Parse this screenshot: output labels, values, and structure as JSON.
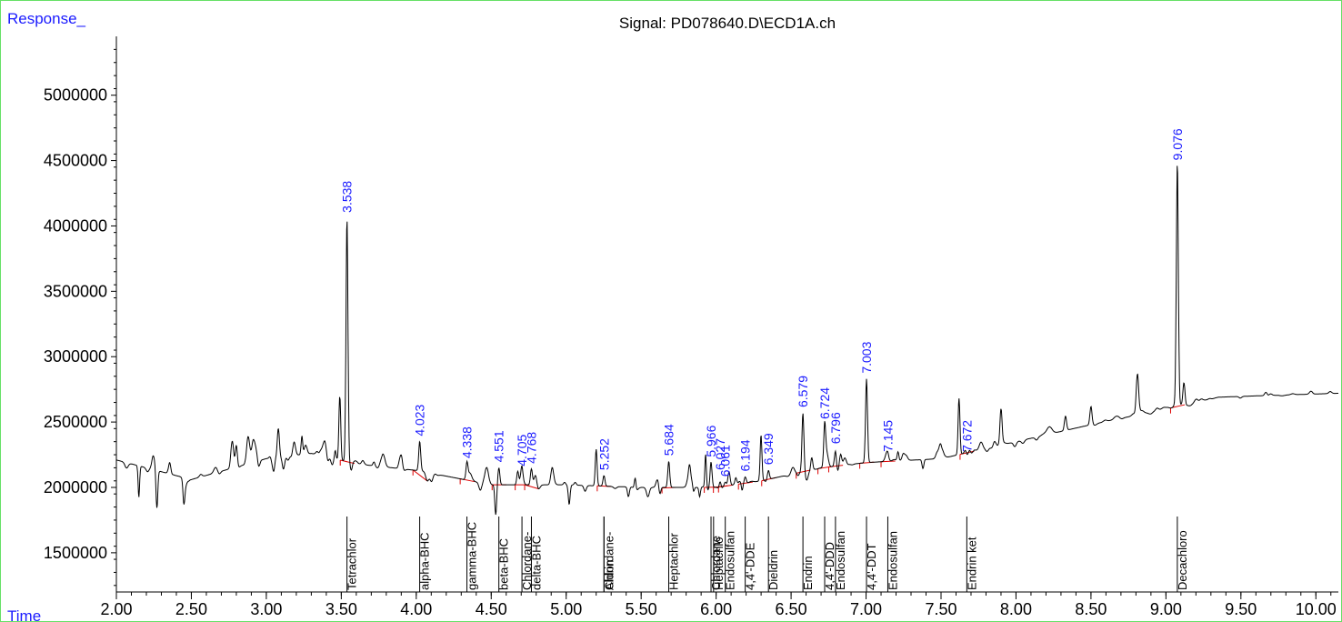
{
  "chart_data": {
    "type": "line",
    "title": "Signal: PD078640.D\\ECD1A.ch",
    "ylabel": "Response_",
    "xlabel": "Time",
    "xlim": [
      2.0,
      10.15
    ],
    "ylim": [
      1200000,
      5450000
    ],
    "x_ticks": [
      "2.00",
      "2.50",
      "3.00",
      "3.50",
      "4.00",
      "4.50",
      "5.00",
      "5.50",
      "6.00",
      "6.50",
      "7.00",
      "7.50",
      "8.00",
      "8.50",
      "9.00",
      "9.50",
      "10.00"
    ],
    "y_ticks": [
      "1500000",
      "2000000",
      "2500000",
      "3000000",
      "3500000",
      "4000000",
      "4500000",
      "5000000"
    ],
    "colors": {
      "trace": "#000000",
      "baseline": "#dd0000",
      "labels": "#1a1aff",
      "frame": "#66e066"
    },
    "peaks": [
      {
        "rt": "3.538",
        "x": 3.538,
        "y": 4060000
      },
      {
        "rt": "4.023",
        "x": 4.023,
        "y": 2350000
      },
      {
        "rt": "4.338",
        "x": 4.338,
        "y": 2180000
      },
      {
        "rt": "4.551",
        "x": 4.551,
        "y": 2150000
      },
      {
        "rt": "4.705",
        "x": 4.705,
        "y": 2120000
      },
      {
        "rt": "4.768",
        "x": 4.768,
        "y": 2140000
      },
      {
        "rt": "5.252",
        "x": 5.252,
        "y": 2090000
      },
      {
        "rt": "5.684",
        "x": 5.684,
        "y": 2200000
      },
      {
        "rt": "5.966",
        "x": 5.966,
        "y": 2190000
      },
      {
        "rt": "6.027",
        "x": 6.027,
        "y": 2090000
      },
      {
        "rt": "6.061",
        "x": 6.061,
        "y": 2040000
      },
      {
        "rt": "6.194",
        "x": 6.194,
        "y": 2080000
      },
      {
        "rt": "6.349",
        "x": 6.349,
        "y": 2130000
      },
      {
        "rt": "6.579",
        "x": 6.579,
        "y": 2570000
      },
      {
        "rt": "6.724",
        "x": 6.724,
        "y": 2480000
      },
      {
        "rt": "6.796",
        "x": 6.796,
        "y": 2290000
      },
      {
        "rt": "7.003",
        "x": 7.003,
        "y": 2830000
      },
      {
        "rt": "7.145",
        "x": 7.145,
        "y": 2230000
      },
      {
        "rt": "7.672",
        "x": 7.672,
        "y": 2230000
      },
      {
        "rt": "9.076",
        "x": 9.076,
        "y": 4460000
      }
    ],
    "compounds": [
      {
        "name": "Tetrachlor",
        "x": 3.538
      },
      {
        "name": "alpha-BHC",
        "x": 4.023
      },
      {
        "name": "gamma-BHC",
        "x": 4.338
      },
      {
        "name": "beta-BHC",
        "x": 4.551
      },
      {
        "name": "Chlordane-",
        "x": 4.705
      },
      {
        "name": "delta-BHC",
        "x": 4.768
      },
      {
        "name": "Chlordane-",
        "x": 5.252
      },
      {
        "name": "Aldrin",
        "x": 5.252
      },
      {
        "name": "Heptachlor",
        "x": 5.684
      },
      {
        "name": "Chlordane",
        "x": 5.966
      },
      {
        "name": "Heptachlo",
        "x": 5.983
      },
      {
        "name": "Endosulfan",
        "x": 6.061
      },
      {
        "name": "4,4'-DDE",
        "x": 6.194
      },
      {
        "name": "Dieldrin",
        "x": 6.349
      },
      {
        "name": "Endrin",
        "x": 6.579
      },
      {
        "name": "4,4'-DDD",
        "x": 6.724
      },
      {
        "name": "Endosulfan",
        "x": 6.796
      },
      {
        "name": "4,4'-DDT",
        "x": 7.003
      },
      {
        "name": "Endosulfan",
        "x": 7.145
      },
      {
        "name": "Endrin ket",
        "x": 7.672
      },
      {
        "name": "Decachloro",
        "x": 9.076
      }
    ]
  }
}
